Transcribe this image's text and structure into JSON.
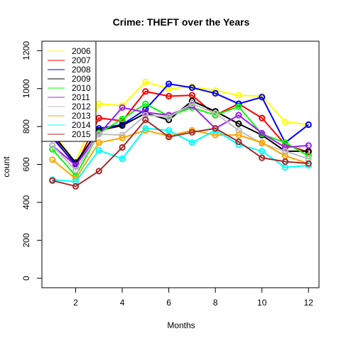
{
  "chart_data": {
    "type": "line",
    "title": "Crime: THEFT over the Years",
    "xlabel": "Months",
    "ylabel": "count",
    "x": [
      1,
      2,
      3,
      4,
      5,
      6,
      7,
      8,
      9,
      10,
      11,
      12
    ],
    "xlim": [
      0.55,
      12.45
    ],
    "ylim": [
      -50,
      1250
    ],
    "xticks": [
      2,
      4,
      6,
      8,
      10,
      12
    ],
    "xtick_labels": [
      "2",
      "4",
      "6",
      "8",
      "10",
      "12"
    ],
    "yticks": [
      0,
      200,
      400,
      600,
      800,
      1000,
      1200
    ],
    "ytick_labels": [
      "0",
      "200",
      "400",
      "600",
      "800",
      "1000",
      "1200"
    ],
    "grid": false,
    "legend_position": "top-left",
    "series": [
      {
        "name": "2006",
        "color": "#ffff00",
        "values": [
          770,
          610,
          920,
          910,
          1035,
          1000,
          1010,
          990,
          965,
          960,
          825,
          810
        ]
      },
      {
        "name": "2007",
        "color": "#ff0000",
        "values": [
          750,
          590,
          845,
          830,
          985,
          960,
          965,
          860,
          920,
          845,
          705,
          665
        ]
      },
      {
        "name": "2008",
        "color": "#0000ff",
        "values": [
          740,
          600,
          790,
          810,
          890,
          1025,
          1005,
          975,
          920,
          955,
          715,
          810
        ]
      },
      {
        "name": "2009",
        "color": "#000000",
        "values": [
          760,
          610,
          780,
          805,
          870,
          835,
          935,
          880,
          815,
          755,
          670,
          670
        ]
      },
      {
        "name": "2010",
        "color": "#00ff00",
        "values": [
          680,
          540,
          765,
          840,
          920,
          855,
          900,
          860,
          905,
          760,
          715,
          645
        ]
      },
      {
        "name": "2011",
        "color": "#a020f0",
        "values": [
          700,
          595,
          760,
          900,
          875,
          860,
          910,
          790,
          860,
          765,
          690,
          700
        ]
      },
      {
        "name": "2012",
        "color": "#bebebe",
        "values": [
          700,
          570,
          760,
          755,
          860,
          850,
          920,
          870,
          780,
          710,
          670,
          630
        ]
      },
      {
        "name": "2013",
        "color": "#ffa500",
        "values": [
          625,
          525,
          715,
          740,
          780,
          750,
          780,
          755,
          755,
          715,
          645,
          605
        ]
      },
      {
        "name": "2014",
        "color": "#00ffff",
        "values": [
          520,
          510,
          675,
          630,
          790,
          780,
          715,
          780,
          705,
          670,
          585,
          595
        ]
      },
      {
        "name": "2015",
        "color": "#a52a2a",
        "values": [
          515,
          485,
          565,
          690,
          835,
          745,
          770,
          790,
          720,
          635,
          615,
          605
        ]
      }
    ]
  }
}
